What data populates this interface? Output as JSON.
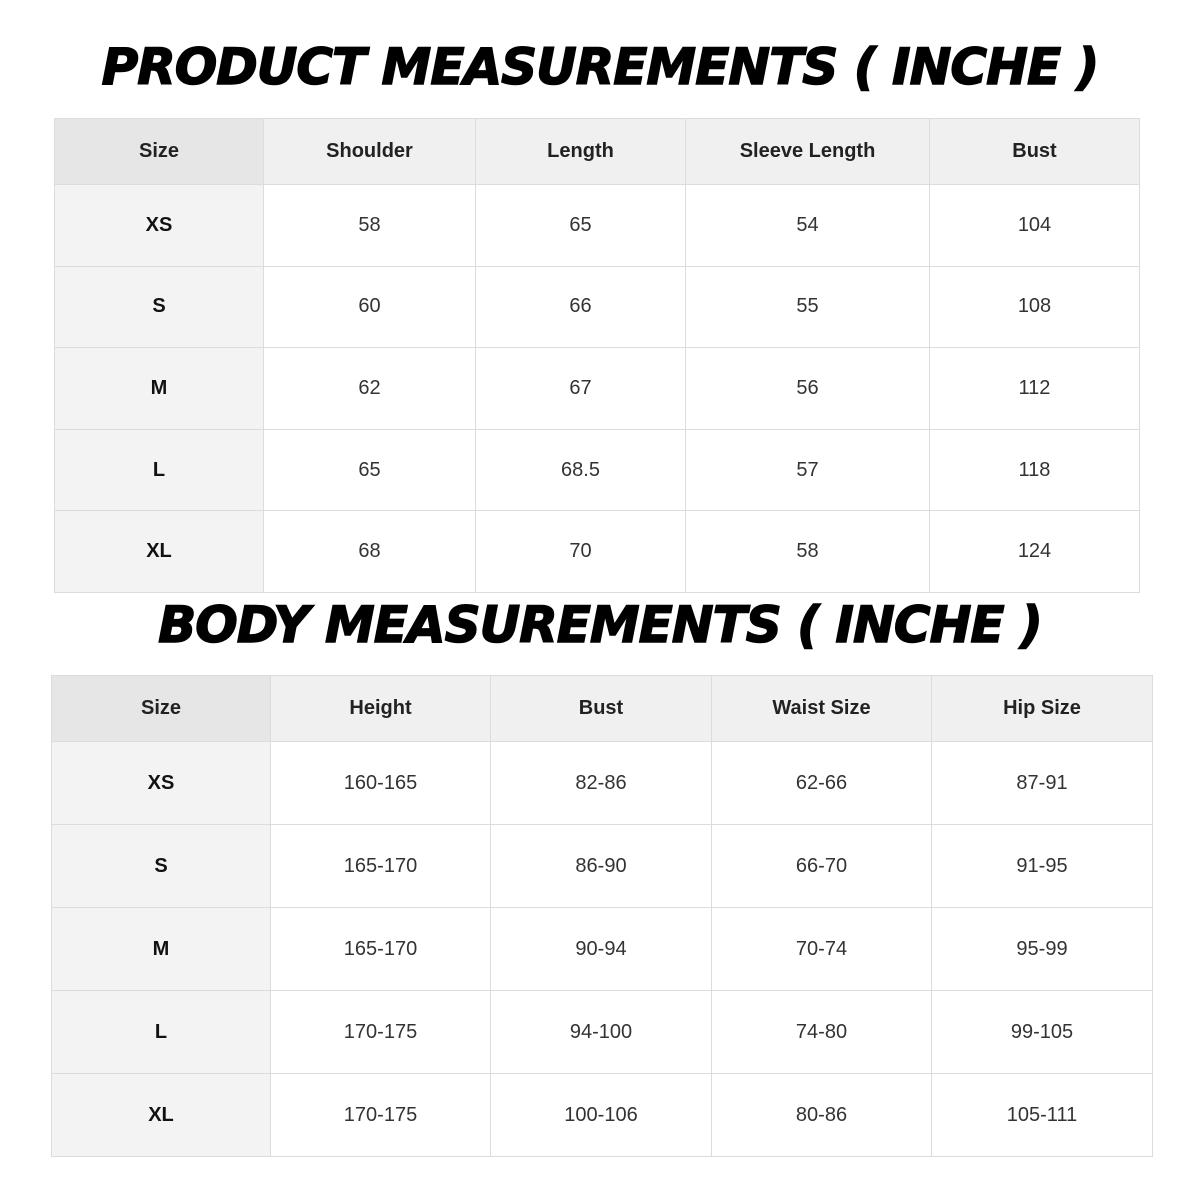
{
  "product": {
    "title": "PRODUCT MEASUREMENTS ( INCHE )",
    "table": {
      "header": [
        "Size",
        "Shoulder",
        "Length",
        "Sleeve Length",
        "Bust"
      ],
      "rows": [
        [
          "XS",
          58,
          65,
          54,
          104
        ],
        [
          "S",
          60,
          66,
          55,
          108
        ],
        [
          "M",
          62,
          67,
          56,
          112
        ],
        [
          "L",
          65,
          68.5,
          57,
          118
        ],
        [
          "XL",
          68,
          70,
          58,
          124
        ]
      ]
    }
  },
  "body": {
    "title": "BODY MEASUREMENTS ( INCHE )",
    "table": {
      "header": [
        "Size",
        "Height",
        "Bust",
        "Waist Size",
        "Hip Size"
      ],
      "rows": [
        [
          "XS",
          "160-165",
          "82-86",
          "62-66",
          "87-91"
        ],
        [
          "S",
          "165-170",
          "86-90",
          "66-70",
          "91-95"
        ],
        [
          "M",
          "165-170",
          "90-94",
          "70-74",
          "95-99"
        ],
        [
          "L",
          "170-175",
          "94-100",
          "74-80",
          "99-105"
        ],
        [
          "XL",
          "170-175",
          "100-106",
          "80-86",
          "105-111"
        ]
      ]
    }
  }
}
